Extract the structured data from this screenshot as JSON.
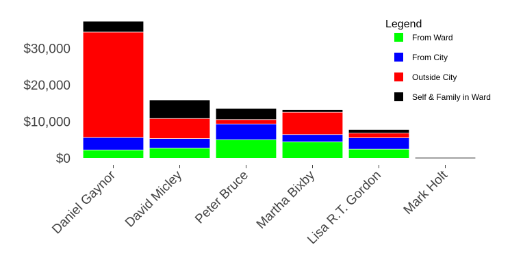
{
  "chart_data": {
    "type": "bar",
    "stacked": true,
    "categories": [
      "Daniel Gaynor",
      "David Micley",
      "Peter Bruce",
      "Martha Bixby",
      "Lisa R.T. Gordon",
      "Mark Holt"
    ],
    "series": [
      {
        "name": "From Ward",
        "color": "#00ff00",
        "values": [
          2200,
          2700,
          5000,
          4400,
          2400,
          0
        ]
      },
      {
        "name": "From City",
        "color": "#0000ff",
        "values": [
          3400,
          2600,
          4300,
          2000,
          3100,
          0
        ]
      },
      {
        "name": "Outside City",
        "color": "#ff0000",
        "values": [
          28800,
          5500,
          1200,
          6100,
          1300,
          0
        ]
      },
      {
        "name": "Self & Family in Ward",
        "color": "#000000",
        "values": [
          2900,
          5000,
          3000,
          600,
          900,
          0
        ]
      }
    ],
    "y_ticks": [
      0,
      10000,
      20000,
      30000
    ],
    "y_tick_labels": [
      "$0",
      "$10,000",
      "$20,000",
      "$30,000"
    ],
    "ylim": [
      0,
      38000
    ],
    "grid": false,
    "legend": {
      "title": "Legend",
      "position": "top-right"
    }
  }
}
